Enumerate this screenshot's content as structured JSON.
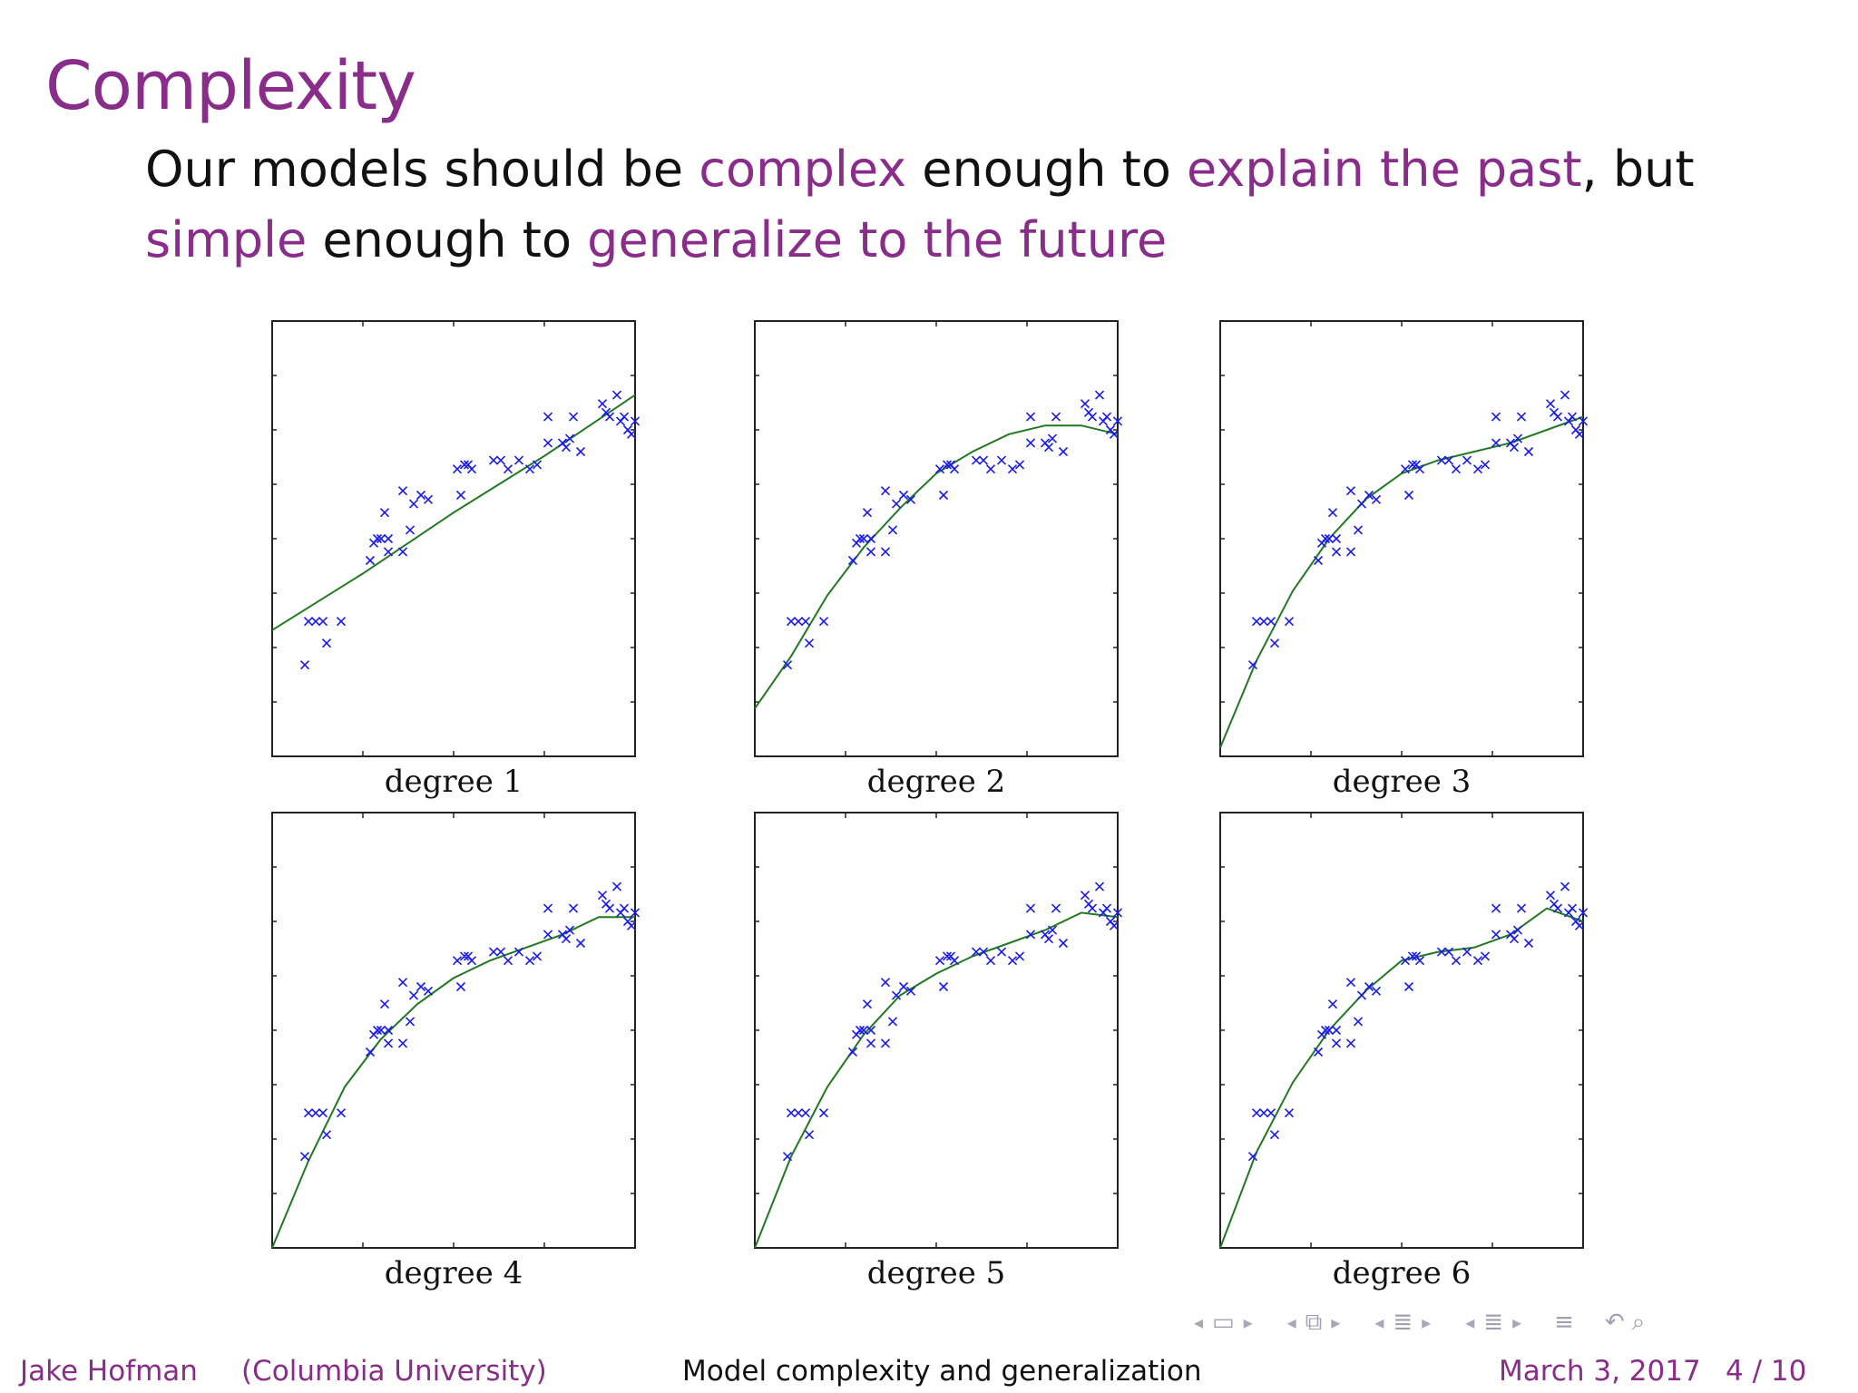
{
  "slide": {
    "title": "Complexity",
    "intro": [
      {
        "text": "Our models should be ",
        "highlight": false
      },
      {
        "text": "complex",
        "highlight": true
      },
      {
        "text": " enough to ",
        "highlight": false
      },
      {
        "text": "explain the past",
        "highlight": true
      },
      {
        "text": ", but ",
        "highlight": false
      },
      {
        "text": "simple",
        "highlight": true
      },
      {
        "text": " enough to ",
        "highlight": false
      },
      {
        "text": "generalize to the future",
        "highlight": true
      }
    ],
    "accent_color": "#8a2c8a"
  },
  "chart_data": {
    "type": "scatter",
    "description_free": true,
    "xlim": [
      0,
      1
    ],
    "ylim": [
      0,
      1
    ],
    "point_color": "#1a1aee",
    "curve_color": "#1f7a1f",
    "points": [
      [
        0.09,
        0.21
      ],
      [
        0.1,
        0.31
      ],
      [
        0.12,
        0.31
      ],
      [
        0.14,
        0.31
      ],
      [
        0.15,
        0.26
      ],
      [
        0.19,
        0.31
      ],
      [
        0.27,
        0.45
      ],
      [
        0.28,
        0.49
      ],
      [
        0.29,
        0.5
      ],
      [
        0.3,
        0.5
      ],
      [
        0.31,
        0.56
      ],
      [
        0.32,
        0.5
      ],
      [
        0.32,
        0.47
      ],
      [
        0.36,
        0.47
      ],
      [
        0.36,
        0.61
      ],
      [
        0.38,
        0.52
      ],
      [
        0.39,
        0.58
      ],
      [
        0.41,
        0.6
      ],
      [
        0.43,
        0.59
      ],
      [
        0.51,
        0.66
      ],
      [
        0.52,
        0.6
      ],
      [
        0.53,
        0.67
      ],
      [
        0.54,
        0.67
      ],
      [
        0.55,
        0.66
      ],
      [
        0.61,
        0.68
      ],
      [
        0.63,
        0.68
      ],
      [
        0.65,
        0.66
      ],
      [
        0.68,
        0.68
      ],
      [
        0.71,
        0.66
      ],
      [
        0.73,
        0.67
      ],
      [
        0.76,
        0.72
      ],
      [
        0.76,
        0.78
      ],
      [
        0.8,
        0.72
      ],
      [
        0.81,
        0.71
      ],
      [
        0.82,
        0.73
      ],
      [
        0.83,
        0.78
      ],
      [
        0.85,
        0.7
      ],
      [
        0.91,
        0.81
      ],
      [
        0.92,
        0.79
      ],
      [
        0.93,
        0.78
      ],
      [
        0.95,
        0.83
      ],
      [
        0.96,
        0.77
      ],
      [
        0.97,
        0.78
      ],
      [
        0.98,
        0.75
      ],
      [
        0.99,
        0.74
      ],
      [
        1.0,
        0.77
      ]
    ],
    "panels": [
      {
        "label": "degree 1",
        "curve": [
          [
            0,
            0.29
          ],
          [
            0.25,
            0.42
          ],
          [
            0.5,
            0.56
          ],
          [
            0.75,
            0.69
          ],
          [
            1.0,
            0.83
          ]
        ]
      },
      {
        "label": "degree 2",
        "curve": [
          [
            0,
            0.11
          ],
          [
            0.1,
            0.23
          ],
          [
            0.2,
            0.37
          ],
          [
            0.3,
            0.48
          ],
          [
            0.4,
            0.57
          ],
          [
            0.5,
            0.65
          ],
          [
            0.6,
            0.7
          ],
          [
            0.7,
            0.74
          ],
          [
            0.8,
            0.76
          ],
          [
            0.9,
            0.76
          ],
          [
            1.0,
            0.74
          ]
        ]
      },
      {
        "label": "degree 3",
        "curve": [
          [
            0,
            0.02
          ],
          [
            0.1,
            0.22
          ],
          [
            0.2,
            0.38
          ],
          [
            0.3,
            0.5
          ],
          [
            0.4,
            0.59
          ],
          [
            0.5,
            0.65
          ],
          [
            0.6,
            0.68
          ],
          [
            0.7,
            0.7
          ],
          [
            0.8,
            0.72
          ],
          [
            0.9,
            0.75
          ],
          [
            1.0,
            0.78
          ]
        ]
      },
      {
        "label": "degree 4",
        "curve": [
          [
            0,
            0.0
          ],
          [
            0.1,
            0.2
          ],
          [
            0.2,
            0.37
          ],
          [
            0.3,
            0.48
          ],
          [
            0.4,
            0.56
          ],
          [
            0.5,
            0.62
          ],
          [
            0.6,
            0.66
          ],
          [
            0.7,
            0.69
          ],
          [
            0.8,
            0.72
          ],
          [
            0.9,
            0.76
          ],
          [
            1.0,
            0.76
          ]
        ]
      },
      {
        "label": "degree 5",
        "curve": [
          [
            0,
            0.0
          ],
          [
            0.1,
            0.21
          ],
          [
            0.2,
            0.37
          ],
          [
            0.3,
            0.49
          ],
          [
            0.4,
            0.58
          ],
          [
            0.5,
            0.63
          ],
          [
            0.6,
            0.67
          ],
          [
            0.7,
            0.7
          ],
          [
            0.8,
            0.73
          ],
          [
            0.9,
            0.77
          ],
          [
            1.0,
            0.76
          ]
        ]
      },
      {
        "label": "degree 6",
        "curve": [
          [
            0,
            0.0
          ],
          [
            0.1,
            0.22
          ],
          [
            0.2,
            0.38
          ],
          [
            0.3,
            0.5
          ],
          [
            0.4,
            0.59
          ],
          [
            0.5,
            0.66
          ],
          [
            0.6,
            0.68
          ],
          [
            0.7,
            0.69
          ],
          [
            0.8,
            0.72
          ],
          [
            0.9,
            0.78
          ],
          [
            1.0,
            0.75
          ]
        ]
      }
    ]
  },
  "navigation": {
    "icons": [
      "nav-prev-arrow",
      "frame-icon",
      "nav-next-arrow",
      "nav-prev-arrow",
      "subsection-icon",
      "nav-next-arrow",
      "nav-prev-arrow",
      "section-icon",
      "nav-next-arrow",
      "nav-prev-arrow",
      "doc-icon",
      "nav-next-arrow",
      "align-icon",
      "undo-icon",
      "search-icon"
    ]
  },
  "footer": {
    "author": "Jake Hofman",
    "institution": "(Columbia University)",
    "title": "Model complexity and generalization",
    "date": "March 3, 2017",
    "page": "4 / 10"
  }
}
